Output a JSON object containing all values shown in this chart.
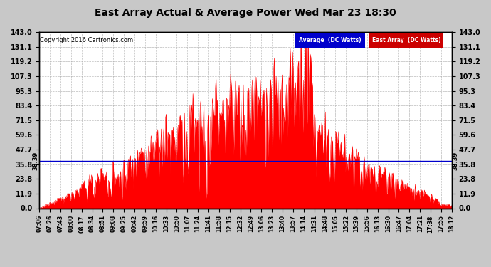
{
  "title": "East Array Actual & Average Power Wed Mar 23 18:30",
  "copyright": "Copyright 2016 Cartronics.com",
  "yticks": [
    0.0,
    11.9,
    23.8,
    35.8,
    47.7,
    59.6,
    71.5,
    83.4,
    95.3,
    107.3,
    119.2,
    131.1,
    143.0
  ],
  "ylim": [
    0.0,
    143.0
  ],
  "avg_value": 38.39,
  "xtick_labels": [
    "07:06",
    "07:26",
    "07:43",
    "08:00",
    "08:17",
    "08:34",
    "08:51",
    "09:08",
    "09:25",
    "09:42",
    "09:59",
    "10:16",
    "10:33",
    "10:50",
    "11:07",
    "11:24",
    "11:41",
    "11:58",
    "12:15",
    "12:32",
    "12:49",
    "13:06",
    "13:23",
    "13:40",
    "13:57",
    "14:14",
    "14:31",
    "14:48",
    "15:05",
    "15:22",
    "15:39",
    "15:56",
    "16:13",
    "16:30",
    "16:47",
    "17:04",
    "17:21",
    "17:38",
    "17:55",
    "18:12"
  ],
  "fig_bg": "#c8c8c8",
  "plot_bg": "#ffffff",
  "grid_color": "#aaaaaa",
  "east_color": "#ff0000",
  "avg_color": "#0000cc",
  "title_color": "#000000",
  "avg_label": "Average  (DC Watts)",
  "east_label": "East Array  (DC Watts)",
  "avg_label_bg": "#0000cc",
  "east_label_bg": "#cc0000"
}
